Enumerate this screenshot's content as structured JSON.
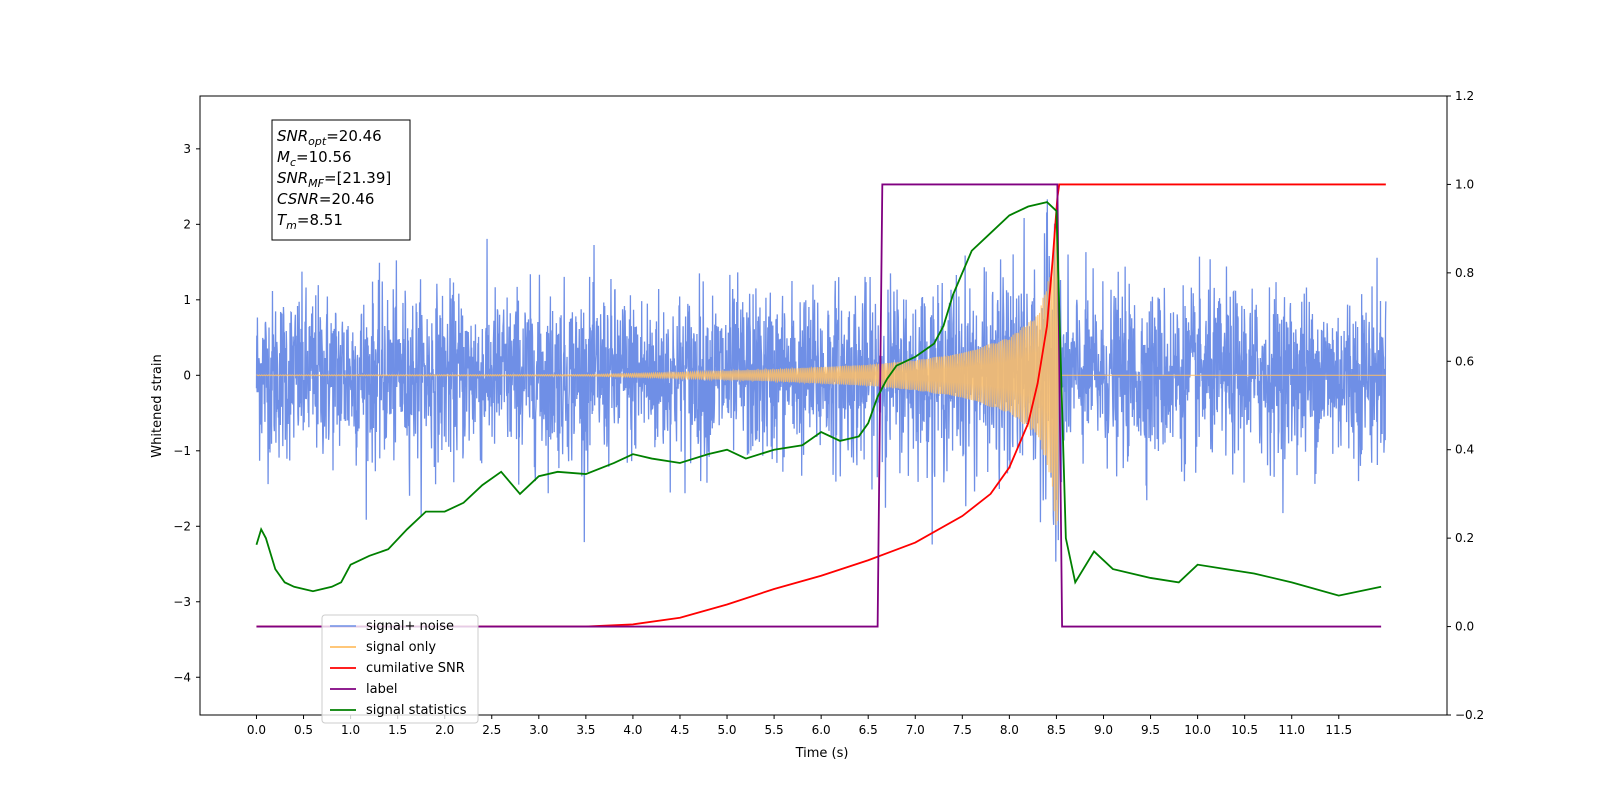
{
  "chart_data": {
    "type": "line",
    "xlabel": "Time (s)",
    "ylabel": "Whitened strain",
    "xlim": [
      -0.6,
      12.65
    ],
    "ylim": [
      -4.5,
      3.7
    ],
    "y2lim": [
      -0.2,
      1.2
    ],
    "x_ticks": [
      "0.0",
      "0.5",
      "1.0",
      "1.5",
      "2.0",
      "2.5",
      "3.0",
      "3.5",
      "4.0",
      "4.5",
      "5.0",
      "5.5",
      "6.0",
      "6.5",
      "7.0",
      "7.5",
      "8.0",
      "8.5",
      "9.0",
      "9.5",
      "10.0",
      "10.5",
      "11.0",
      "11.5"
    ],
    "y_ticks": [
      "3",
      "2",
      "1",
      "0",
      "−1",
      "−2",
      "−3",
      "−4"
    ],
    "y2_ticks": [
      "1.2",
      "1.0",
      "0.8",
      "0.6",
      "0.4",
      "0.2",
      "0.0",
      "−0.2"
    ],
    "annotation": {
      "lines": [
        {
          "base": "SNR",
          "sub": "opt",
          "value": "=20.46"
        },
        {
          "base": "M",
          "sub": "c",
          "value": "=10.56"
        },
        {
          "base": "SNR",
          "sub": "MF",
          "value": "=[21.39]"
        },
        {
          "base": "CSNR",
          "sub": "",
          "value": "=20.46"
        },
        {
          "base": "T",
          "sub": "m",
          "value": "=8.51"
        }
      ]
    },
    "legend": {
      "placement": "bottom-left",
      "entries": [
        {
          "label": "signal+ noise",
          "color": "#6f8fe6"
        },
        {
          "label": "signal only",
          "color": "#ffbf66"
        },
        {
          "label": "cumilative SNR",
          "color": "#ff0000"
        },
        {
          "label": "label",
          "color": "#800080"
        },
        {
          "label": "signal statistics",
          "color": "#008000"
        }
      ]
    },
    "series": [
      {
        "name": "signal+ noise",
        "axis": "left",
        "color": "#6f8fe6",
        "noise_band_sigma": 0.55,
        "x_range": [
          0.0,
          12.0
        ]
      },
      {
        "name": "signal only",
        "axis": "left",
        "color": "#ffbf66",
        "envelope": [
          [
            0.0,
            0.005
          ],
          [
            3.5,
            0.01
          ],
          [
            4.5,
            0.04
          ],
          [
            5.5,
            0.08
          ],
          [
            6.5,
            0.14
          ],
          [
            7.0,
            0.2
          ],
          [
            7.5,
            0.3
          ],
          [
            8.0,
            0.5
          ],
          [
            8.3,
            0.8
          ],
          [
            8.45,
            1.4
          ],
          [
            8.51,
            2.3
          ],
          [
            8.53,
            0.0
          ],
          [
            12.0,
            0.0
          ]
        ]
      },
      {
        "name": "cumilative SNR",
        "axis": "right",
        "color": "#ff0000",
        "points": [
          [
            0.0,
            0.0
          ],
          [
            3.5,
            0.0
          ],
          [
            4.0,
            0.005
          ],
          [
            4.5,
            0.02
          ],
          [
            5.0,
            0.05
          ],
          [
            5.5,
            0.085
          ],
          [
            6.0,
            0.115
          ],
          [
            6.5,
            0.15
          ],
          [
            7.0,
            0.19
          ],
          [
            7.5,
            0.25
          ],
          [
            7.8,
            0.3
          ],
          [
            8.0,
            0.36
          ],
          [
            8.2,
            0.46
          ],
          [
            8.3,
            0.55
          ],
          [
            8.4,
            0.68
          ],
          [
            8.46,
            0.83
          ],
          [
            8.51,
            0.97
          ],
          [
            8.53,
            1.0
          ],
          [
            12.0,
            1.0
          ]
        ]
      },
      {
        "name": "label",
        "axis": "right",
        "color": "#800080",
        "points": [
          [
            0.0,
            0.0
          ],
          [
            6.6,
            0.0
          ],
          [
            6.65,
            1.0
          ],
          [
            8.51,
            1.0
          ],
          [
            8.56,
            0.0
          ],
          [
            11.95,
            0.0
          ]
        ]
      },
      {
        "name": "signal statistics",
        "axis": "right",
        "color": "#008000",
        "points": [
          [
            0.0,
            0.185
          ],
          [
            0.05,
            0.22
          ],
          [
            0.1,
            0.2
          ],
          [
            0.2,
            0.13
          ],
          [
            0.3,
            0.1
          ],
          [
            0.4,
            0.09
          ],
          [
            0.5,
            0.085
          ],
          [
            0.6,
            0.08
          ],
          [
            0.7,
            0.085
          ],
          [
            0.8,
            0.09
          ],
          [
            0.9,
            0.1
          ],
          [
            1.0,
            0.14
          ],
          [
            1.2,
            0.16
          ],
          [
            1.4,
            0.175
          ],
          [
            1.6,
            0.22
          ],
          [
            1.8,
            0.26
          ],
          [
            2.0,
            0.26
          ],
          [
            2.2,
            0.28
          ],
          [
            2.4,
            0.32
          ],
          [
            2.6,
            0.35
          ],
          [
            2.8,
            0.3
          ],
          [
            3.0,
            0.34
          ],
          [
            3.2,
            0.35
          ],
          [
            3.5,
            0.345
          ],
          [
            3.8,
            0.37
          ],
          [
            4.0,
            0.39
          ],
          [
            4.2,
            0.38
          ],
          [
            4.5,
            0.37
          ],
          [
            4.8,
            0.39
          ],
          [
            5.0,
            0.4
          ],
          [
            5.2,
            0.38
          ],
          [
            5.5,
            0.4
          ],
          [
            5.8,
            0.41
          ],
          [
            6.0,
            0.44
          ],
          [
            6.2,
            0.42
          ],
          [
            6.4,
            0.43
          ],
          [
            6.5,
            0.46
          ],
          [
            6.6,
            0.52
          ],
          [
            6.7,
            0.56
          ],
          [
            6.8,
            0.59
          ],
          [
            7.0,
            0.61
          ],
          [
            7.2,
            0.64
          ],
          [
            7.3,
            0.68
          ],
          [
            7.4,
            0.75
          ],
          [
            7.6,
            0.85
          ],
          [
            7.8,
            0.89
          ],
          [
            8.0,
            0.93
          ],
          [
            8.2,
            0.95
          ],
          [
            8.4,
            0.96
          ],
          [
            8.5,
            0.94
          ],
          [
            8.6,
            0.2
          ],
          [
            8.7,
            0.1
          ],
          [
            8.9,
            0.17
          ],
          [
            9.1,
            0.13
          ],
          [
            9.5,
            0.11
          ],
          [
            9.8,
            0.1
          ],
          [
            10.0,
            0.14
          ],
          [
            10.3,
            0.13
          ],
          [
            10.6,
            0.12
          ],
          [
            11.0,
            0.1
          ],
          [
            11.5,
            0.07
          ],
          [
            11.95,
            0.09
          ]
        ]
      }
    ]
  }
}
